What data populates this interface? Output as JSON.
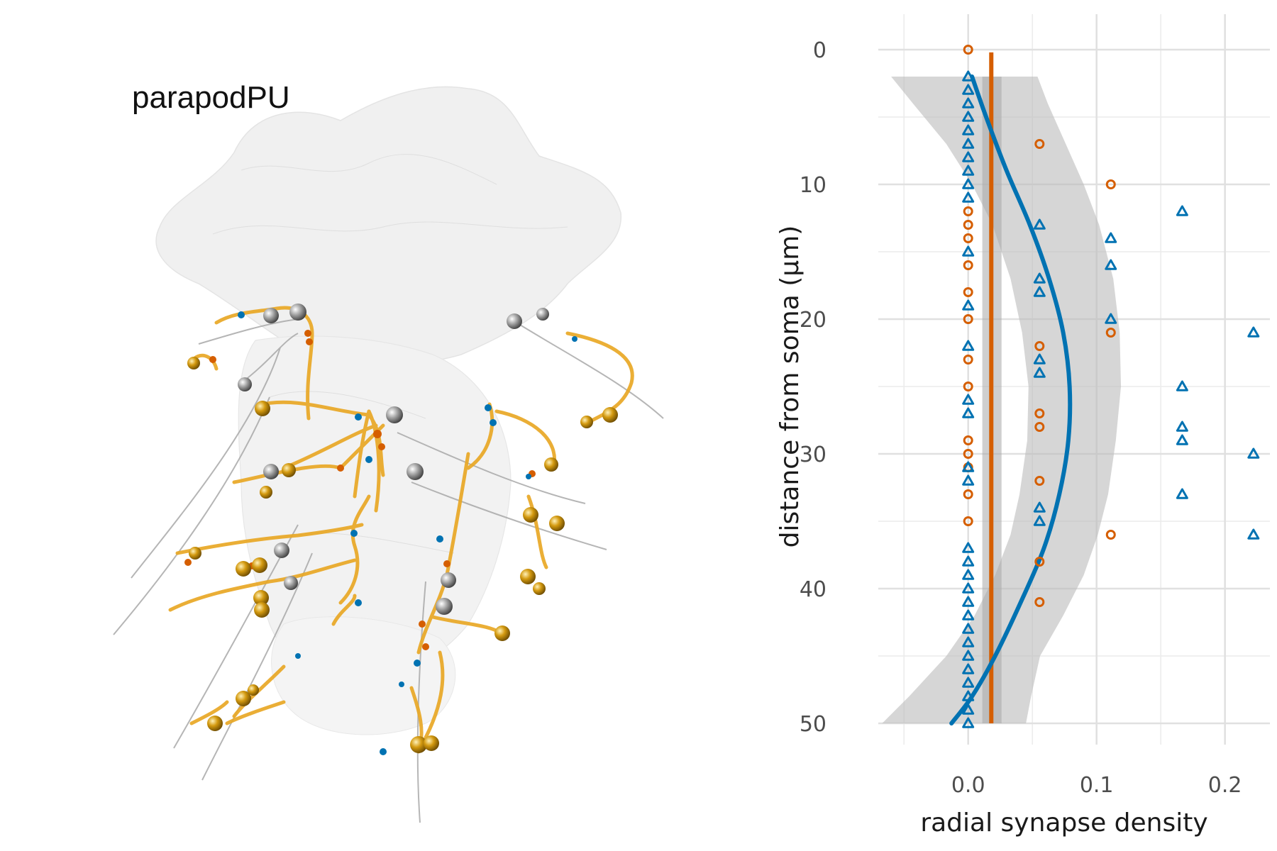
{
  "panel": {
    "title": "parapodPU",
    "glyphs": {
      "body": "translucent-neuropil-volume",
      "soma_gray": "gray-sphere",
      "soma_gold": "gold-sphere",
      "arbor": "orange-neurite",
      "axon": "gray-neurite"
    },
    "colors": {
      "arbor": "#E9A825",
      "soma_gold": "#D49A10",
      "soma_gray": "#8C8C8C",
      "synapse_pre": "#D55E00",
      "synapse_post": "#0072B2",
      "volume": "#E6E6E6"
    }
  },
  "chart_data": {
    "type": "scatter",
    "xlabel": "radial synapse density",
    "ylabel": "distance from soma (µm)",
    "xlim": [
      -0.07,
      0.235
    ],
    "ylim": [
      50,
      0
    ],
    "y_reversed": true,
    "x_ticks": [
      0.0,
      0.1,
      0.2
    ],
    "x_tick_labels": [
      "0.0",
      "0.1",
      "0.2"
    ],
    "y_ticks": [
      0,
      10,
      20,
      30,
      40,
      50
    ],
    "y_tick_labels": [
      "0",
      "10",
      "20",
      "30",
      "40",
      "50"
    ],
    "grid": true,
    "legend": "none",
    "series": [
      {
        "marker": "circle",
        "color": "#D55E00",
        "points": [
          [
            0,
            0
          ],
          [
            0.0556,
            7
          ],
          [
            0.1111,
            10
          ],
          [
            0,
            12
          ],
          [
            0,
            13
          ],
          [
            0,
            14
          ],
          [
            0,
            16
          ],
          [
            0,
            18
          ],
          [
            0,
            20
          ],
          [
            0.1111,
            21
          ],
          [
            0.0556,
            22
          ],
          [
            0,
            23
          ],
          [
            0,
            25
          ],
          [
            0.0556,
            27
          ],
          [
            0.0556,
            28
          ],
          [
            0,
            29
          ],
          [
            0,
            30
          ],
          [
            0,
            31
          ],
          [
            0.0556,
            32
          ],
          [
            0,
            33
          ],
          [
            0,
            35
          ],
          [
            0.1111,
            36
          ],
          [
            0.0556,
            38
          ],
          [
            0.0556,
            41
          ]
        ],
        "mean_line_x": 0.018,
        "mean_band": [
          0.011,
          0.026
        ]
      },
      {
        "marker": "triangle",
        "color": "#0072B2",
        "points": [
          [
            0,
            2
          ],
          [
            0,
            3
          ],
          [
            0,
            4
          ],
          [
            0,
            5
          ],
          [
            0,
            6
          ],
          [
            0,
            7
          ],
          [
            0,
            8
          ],
          [
            0,
            9
          ],
          [
            0,
            10
          ],
          [
            0,
            11
          ],
          [
            0.1667,
            12
          ],
          [
            0.0556,
            13
          ],
          [
            0.1111,
            14
          ],
          [
            0,
            15
          ],
          [
            0.1111,
            16
          ],
          [
            0.0556,
            17
          ],
          [
            0.0556,
            18
          ],
          [
            0,
            19
          ],
          [
            0.1111,
            20
          ],
          [
            0.2222,
            21
          ],
          [
            0,
            22
          ],
          [
            0.0556,
            23
          ],
          [
            0.0556,
            24
          ],
          [
            0.1667,
            25
          ],
          [
            0,
            26
          ],
          [
            0,
            27
          ],
          [
            0.1667,
            28
          ],
          [
            0.1667,
            29
          ],
          [
            0.2222,
            30
          ],
          [
            0,
            31
          ],
          [
            0,
            32
          ],
          [
            0.1667,
            33
          ],
          [
            0.0556,
            34
          ],
          [
            0.0556,
            35
          ],
          [
            0.2222,
            36
          ],
          [
            0,
            37
          ],
          [
            0,
            38
          ],
          [
            0,
            39
          ],
          [
            0,
            40
          ],
          [
            0,
            41
          ],
          [
            0,
            42
          ],
          [
            0,
            43
          ],
          [
            0,
            44
          ],
          [
            0,
            45
          ],
          [
            0,
            46
          ],
          [
            0,
            47
          ],
          [
            0,
            48
          ],
          [
            0,
            49
          ],
          [
            0,
            50
          ]
        ],
        "smooth_curve": [
          [
            0.003,
            2
          ],
          [
            0.014,
            5
          ],
          [
            0.03,
            9
          ],
          [
            0.048,
            13
          ],
          [
            0.063,
            17
          ],
          [
            0.074,
            21
          ],
          [
            0.079,
            25
          ],
          [
            0.078,
            29
          ],
          [
            0.071,
            33
          ],
          [
            0.059,
            37
          ],
          [
            0.041,
            41
          ],
          [
            0.021,
            45
          ],
          [
            0.003,
            48
          ],
          [
            -0.013,
            50
          ]
        ],
        "smooth_band": [
          [
            2,
            -0.06,
            0.054
          ],
          [
            4,
            -0.043,
            0.062
          ],
          [
            7,
            -0.017,
            0.076
          ],
          [
            10,
            0.003,
            0.09
          ],
          [
            13,
            0.019,
            0.102
          ],
          [
            17,
            0.033,
            0.113
          ],
          [
            21,
            0.042,
            0.118
          ],
          [
            25,
            0.047,
            0.119
          ],
          [
            29,
            0.046,
            0.115
          ],
          [
            33,
            0.04,
            0.109
          ],
          [
            36,
            0.033,
            0.101
          ],
          [
            39,
            0.021,
            0.09
          ],
          [
            42,
            0.005,
            0.074
          ],
          [
            45,
            -0.017,
            0.056
          ],
          [
            48,
            -0.046,
            0.049
          ],
          [
            50,
            -0.067,
            0.045
          ]
        ]
      }
    ]
  }
}
